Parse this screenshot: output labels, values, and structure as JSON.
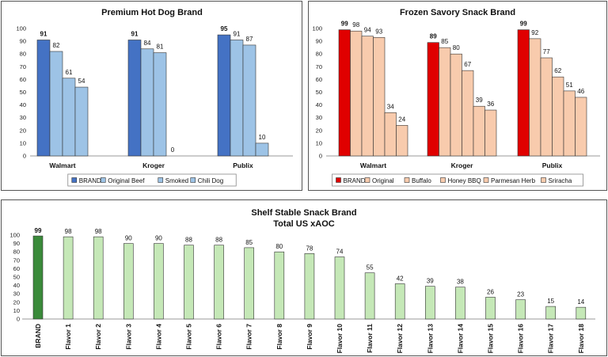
{
  "chart_data": [
    {
      "type": "bar",
      "title": "Premium Hot Dog Brand",
      "categories": [
        "Walmart",
        "Kroger",
        "Publix"
      ],
      "ylim": [
        0,
        100
      ],
      "yticks": [
        0,
        10,
        20,
        30,
        40,
        50,
        60,
        70,
        80,
        90,
        100
      ],
      "legend": "bottom",
      "series": [
        {
          "name": "BRAND",
          "color": "#4472C4",
          "values": [
            91,
            91,
            95
          ]
        },
        {
          "name": "Original Beef",
          "color": "#9DC3E6",
          "values": [
            82,
            84,
            91
          ]
        },
        {
          "name": "Smoked",
          "color": "#9DC3E6",
          "values": [
            61,
            81,
            87
          ]
        },
        {
          "name": "Chili Dog",
          "color": "#9DC3E6",
          "values": [
            54,
            0,
            10
          ]
        }
      ]
    },
    {
      "type": "bar",
      "title": "Frozen Savory Snack Brand",
      "categories": [
        "Walmart",
        "Kroger",
        "Publix"
      ],
      "ylim": [
        0,
        100
      ],
      "yticks": [
        0,
        10,
        20,
        30,
        40,
        50,
        60,
        70,
        80,
        90,
        100
      ],
      "legend": "bottom",
      "series": [
        {
          "name": "BRAND",
          "color": "#E00000",
          "values": [
            99,
            89,
            99
          ]
        },
        {
          "name": "Original",
          "color": "#F8CBAD",
          "values": [
            98,
            85,
            92
          ]
        },
        {
          "name": "Buffalo",
          "color": "#F8CBAD",
          "values": [
            94,
            80,
            77
          ]
        },
        {
          "name": "Honey BBQ",
          "color": "#F8CBAD",
          "values": [
            93,
            67,
            62
          ]
        },
        {
          "name": "Parmesan Herb",
          "color": "#F8CBAD",
          "values": [
            34,
            39,
            51
          ]
        },
        {
          "name": "Sriracha",
          "color": "#F8CBAD",
          "values": [
            24,
            36,
            46
          ]
        }
      ]
    },
    {
      "type": "bar",
      "title": "Shelf Stable Snack Brand",
      "subtitle": "Total US xAOC",
      "ylim": [
        0,
        100
      ],
      "yticks": [
        0,
        10,
        20,
        30,
        40,
        50,
        60,
        70,
        80,
        90,
        100
      ],
      "brand_color": "#3A8A3A",
      "bar_color": "#C5E8B7",
      "categories": [
        "BRAND",
        "Flavor 1",
        "Flavor 2",
        "Flavor 3",
        "Flavor 4",
        "Flavor 5",
        "Flavor 6",
        "Flavor 7",
        "Flavor 8",
        "Flavor 9",
        "Flavor 10",
        "Flavor 11",
        "Flavor 12",
        "Flavor 13",
        "Flavor 14",
        "Flavor 15",
        "Flavor 16",
        "Flavor 17",
        "Flavor 18"
      ],
      "values": [
        99,
        98,
        98,
        90,
        90,
        88,
        88,
        85,
        80,
        78,
        74,
        55,
        42,
        39,
        38,
        26,
        23,
        15,
        14
      ]
    }
  ]
}
